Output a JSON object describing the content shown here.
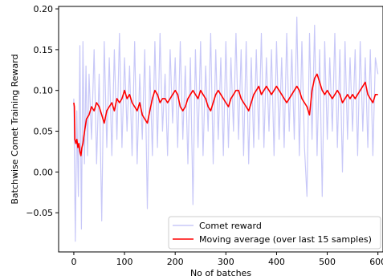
{
  "chart_data": {
    "type": "line",
    "xlabel": "No of batches",
    "ylabel": "Batchwise Comet Training Reward",
    "xlim": [
      -30,
      610
    ],
    "ylim": [
      -0.098,
      0.203
    ],
    "x_ticks": [
      0,
      100,
      200,
      300,
      400,
      500,
      600
    ],
    "x_tick_labels": [
      "0",
      "100",
      "200",
      "300",
      "400",
      "500",
      "600"
    ],
    "y_ticks": [
      -0.05,
      0.0,
      0.05,
      0.1,
      0.15,
      0.2
    ],
    "y_tick_labels": [
      "−0.05",
      "0.00",
      "0.05",
      "0.10",
      "0.15",
      "0.20"
    ],
    "grid": false,
    "legend_position": "lower-right",
    "series": [
      {
        "name": "Comet reward",
        "color": "#c8c8f8",
        "x": [
          0,
          3,
          6,
          9,
          12,
          15,
          18,
          21,
          24,
          27,
          30,
          35,
          40,
          45,
          50,
          55,
          60,
          65,
          70,
          75,
          80,
          85,
          90,
          95,
          100,
          105,
          110,
          115,
          120,
          125,
          130,
          135,
          140,
          145,
          150,
          155,
          160,
          165,
          170,
          175,
          180,
          185,
          190,
          195,
          200,
          205,
          210,
          215,
          220,
          225,
          230,
          235,
          240,
          245,
          250,
          255,
          260,
          265,
          270,
          275,
          280,
          285,
          290,
          295,
          300,
          305,
          310,
          315,
          320,
          325,
          330,
          335,
          340,
          345,
          350,
          355,
          360,
          365,
          370,
          375,
          380,
          385,
          390,
          395,
          400,
          405,
          410,
          415,
          420,
          425,
          430,
          435,
          440,
          445,
          450,
          455,
          460,
          465,
          470,
          475,
          480,
          485,
          490,
          495,
          500,
          505,
          510,
          515,
          520,
          525,
          530,
          535,
          540,
          545,
          550,
          555,
          560,
          565,
          570,
          575,
          580,
          585,
          590,
          595,
          600
        ],
        "values": [
          0.09,
          -0.085,
          0.075,
          -0.03,
          0.155,
          -0.07,
          0.16,
          0.01,
          0.13,
          0.02,
          0.12,
          0.04,
          0.15,
          0.01,
          0.12,
          -0.06,
          0.16,
          0.03,
          0.14,
          0.02,
          0.15,
          0.04,
          0.17,
          0.03,
          0.14,
          0.05,
          0.13,
          0.02,
          0.16,
          0.01,
          0.12,
          0.04,
          0.15,
          -0.045,
          0.13,
          0.02,
          0.16,
          0.03,
          0.17,
          0.05,
          0.12,
          0.02,
          0.15,
          0.06,
          0.14,
          0.03,
          0.16,
          0.04,
          0.13,
          0.01,
          0.14,
          -0.04,
          0.15,
          0.03,
          0.16,
          0.02,
          0.13,
          0.05,
          0.17,
          0.01,
          0.15,
          0.04,
          0.14,
          0.02,
          0.16,
          0.03,
          0.14,
          0.05,
          0.17,
          0.04,
          0.15,
          0.02,
          0.16,
          0.01,
          0.14,
          0.03,
          0.15,
          0.04,
          0.17,
          0.03,
          0.14,
          0.05,
          0.15,
          0.02,
          0.16,
          0.04,
          0.14,
          0.03,
          0.17,
          0.05,
          0.15,
          0.04,
          0.19,
          0.02,
          0.16,
          0.03,
          -0.03,
          0.17,
          0.04,
          0.18,
          0.02,
          0.15,
          -0.03,
          0.16,
          0.04,
          0.14,
          0.05,
          0.17,
          0.03,
          0.15,
          0.0,
          0.16,
          0.04,
          0.14,
          0.05,
          0.15,
          0.02,
          0.16,
          0.05,
          0.14,
          0.03,
          0.15,
          0.02,
          0.14,
          0.12
        ]
      },
      {
        "name": "Moving average (over last 15 samples)",
        "color": "#ff0000",
        "x": [
          0,
          1,
          2,
          4,
          6,
          8,
          10,
          12,
          14,
          16,
          18,
          20,
          25,
          30,
          35,
          40,
          45,
          50,
          55,
          60,
          65,
          70,
          75,
          80,
          85,
          90,
          95,
          100,
          105,
          110,
          115,
          120,
          125,
          130,
          135,
          140,
          145,
          150,
          155,
          160,
          165,
          170,
          175,
          180,
          185,
          190,
          195,
          200,
          205,
          210,
          215,
          220,
          225,
          230,
          235,
          240,
          245,
          250,
          255,
          260,
          265,
          270,
          275,
          280,
          285,
          290,
          295,
          300,
          305,
          310,
          315,
          320,
          325,
          330,
          335,
          340,
          345,
          350,
          355,
          360,
          365,
          370,
          375,
          380,
          385,
          390,
          395,
          400,
          405,
          410,
          415,
          420,
          425,
          430,
          435,
          440,
          445,
          450,
          455,
          460,
          465,
          470,
          475,
          480,
          485,
          490,
          495,
          500,
          505,
          510,
          515,
          520,
          525,
          530,
          535,
          540,
          545,
          550,
          555,
          560,
          565,
          570,
          575,
          580,
          585,
          590,
          595,
          600
        ],
        "values": [
          0.085,
          0.08,
          0.04,
          0.035,
          0.04,
          0.03,
          0.035,
          0.025,
          0.02,
          0.03,
          0.035,
          0.045,
          0.065,
          0.07,
          0.08,
          0.075,
          0.085,
          0.08,
          0.07,
          0.06,
          0.075,
          0.08,
          0.085,
          0.075,
          0.09,
          0.085,
          0.09,
          0.1,
          0.09,
          0.095,
          0.085,
          0.08,
          0.075,
          0.085,
          0.07,
          0.065,
          0.06,
          0.075,
          0.09,
          0.1,
          0.095,
          0.085,
          0.09,
          0.09,
          0.085,
          0.09,
          0.095,
          0.1,
          0.095,
          0.08,
          0.075,
          0.08,
          0.09,
          0.095,
          0.1,
          0.095,
          0.09,
          0.1,
          0.095,
          0.09,
          0.08,
          0.075,
          0.085,
          0.095,
          0.1,
          0.095,
          0.09,
          0.085,
          0.08,
          0.09,
          0.095,
          0.1,
          0.1,
          0.09,
          0.085,
          0.08,
          0.075,
          0.085,
          0.095,
          0.1,
          0.105,
          0.095,
          0.1,
          0.105,
          0.1,
          0.095,
          0.1,
          0.105,
          0.1,
          0.095,
          0.09,
          0.085,
          0.09,
          0.095,
          0.1,
          0.105,
          0.1,
          0.09,
          0.085,
          0.08,
          0.07,
          0.1,
          0.115,
          0.12,
          0.11,
          0.1,
          0.095,
          0.1,
          0.095,
          0.09,
          0.095,
          0.1,
          0.095,
          0.085,
          0.09,
          0.095,
          0.09,
          0.095,
          0.09,
          0.095,
          0.1,
          0.105,
          0.11,
          0.095,
          0.09,
          0.085,
          0.095,
          0.095
        ]
      }
    ]
  }
}
